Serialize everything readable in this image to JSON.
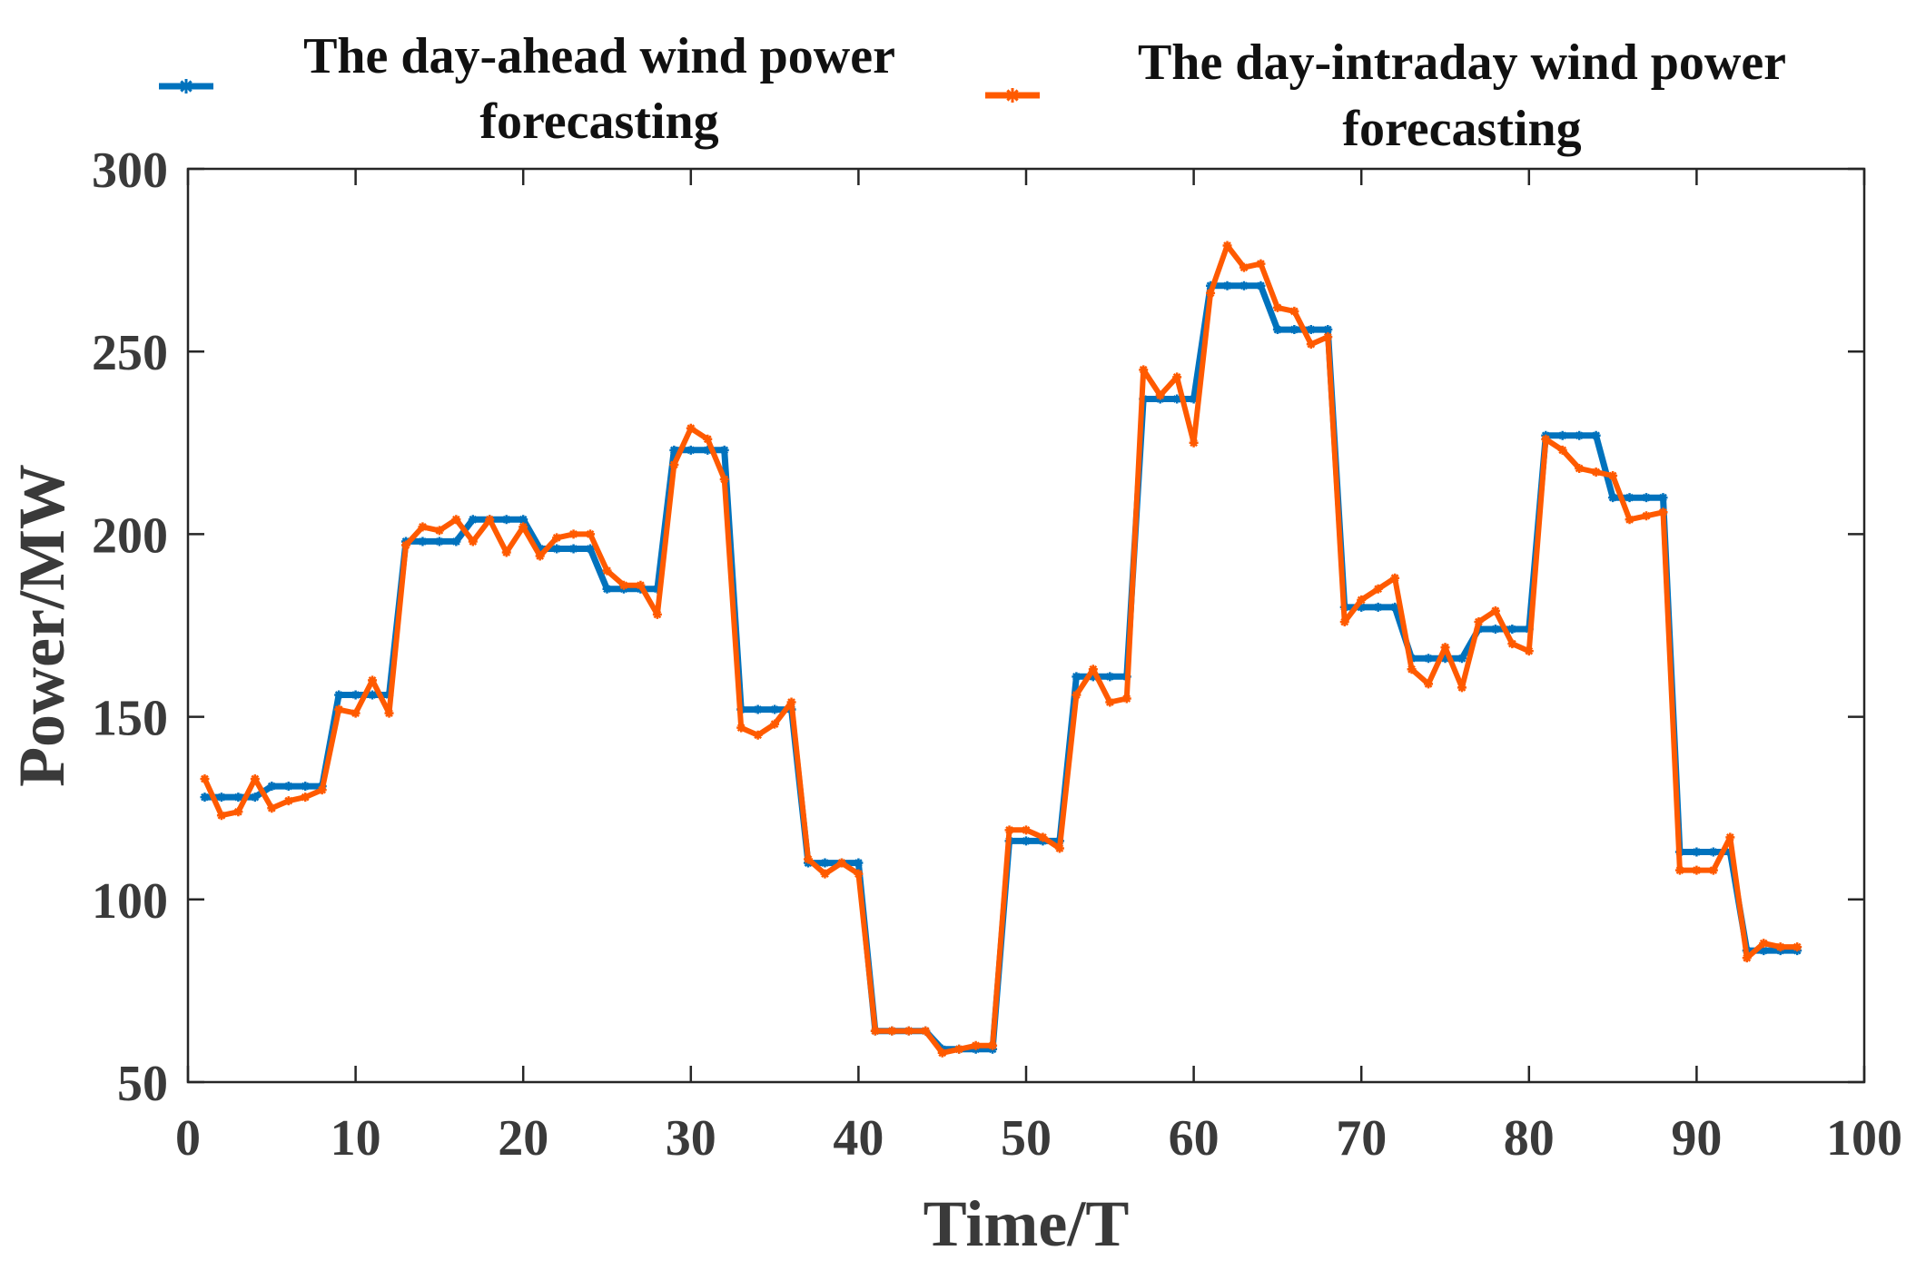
{
  "chart_data": {
    "type": "line",
    "title": "",
    "xlabel": "Time/T",
    "ylabel": "Power/MW",
    "xlim": [
      0,
      100
    ],
    "ylim": [
      50,
      300
    ],
    "xticks": [
      0,
      10,
      20,
      30,
      40,
      50,
      60,
      70,
      80,
      90,
      100
    ],
    "yticks": [
      50,
      100,
      150,
      200,
      250,
      300
    ],
    "xtick_labels": [
      "0",
      "10",
      "20",
      "30",
      "40",
      "50",
      "60",
      "70",
      "80",
      "90",
      "100"
    ],
    "ytick_labels": [
      "50",
      "100",
      "150",
      "200",
      "250",
      "300"
    ],
    "grid": false,
    "legend_position": "top",
    "x": [
      1,
      2,
      3,
      4,
      5,
      6,
      7,
      8,
      9,
      10,
      11,
      12,
      13,
      14,
      15,
      16,
      17,
      18,
      19,
      20,
      21,
      22,
      23,
      24,
      25,
      26,
      27,
      28,
      29,
      30,
      31,
      32,
      33,
      34,
      35,
      36,
      37,
      38,
      39,
      40,
      41,
      42,
      43,
      44,
      45,
      46,
      47,
      48,
      49,
      50,
      51,
      52,
      53,
      54,
      55,
      56,
      57,
      58,
      59,
      60,
      61,
      62,
      63,
      64,
      65,
      66,
      67,
      68,
      69,
      70,
      71,
      72,
      73,
      74,
      75,
      76,
      77,
      78,
      79,
      80,
      81,
      82,
      83,
      84,
      85,
      86,
      87,
      88,
      89,
      90,
      91,
      92,
      93,
      94,
      95,
      96
    ],
    "series": [
      {
        "name": "The day-ahead wind power forecasting",
        "legend_line1": "The day-ahead wind power",
        "legend_line2": "forecasting",
        "color": "#0072bd",
        "values": [
          128,
          128,
          128,
          128,
          131,
          131,
          131,
          131,
          156,
          156,
          156,
          156,
          198,
          198,
          198,
          198,
          204,
          204,
          204,
          204,
          196,
          196,
          196,
          196,
          185,
          185,
          185,
          185,
          223,
          223,
          223,
          223,
          152,
          152,
          152,
          152,
          110,
          110,
          110,
          110,
          64,
          64,
          64,
          64,
          59,
          59,
          59,
          59,
          116,
          116,
          116,
          116,
          161,
          161,
          161,
          161,
          237,
          237,
          237,
          237,
          268,
          268,
          268,
          268,
          256,
          256,
          256,
          256,
          180,
          180,
          180,
          180,
          166,
          166,
          166,
          166,
          174,
          174,
          174,
          174,
          227,
          227,
          227,
          227,
          210,
          210,
          210,
          210,
          113,
          113,
          113,
          113,
          86,
          86,
          86,
          86
        ]
      },
      {
        "name": "The day-intraday wind power forecasting",
        "legend_line1": "The day-intraday wind power",
        "legend_line2": "forecasting",
        "color": "#ff5a00",
        "values": [
          133,
          123,
          124,
          133,
          125,
          127,
          128,
          130,
          152,
          151,
          160,
          151,
          197,
          202,
          201,
          204,
          198,
          204,
          195,
          202,
          194,
          199,
          200,
          200,
          190,
          186,
          186,
          178,
          219,
          229,
          226,
          215,
          147,
          145,
          148,
          154,
          111,
          107,
          110,
          107,
          64,
          64,
          64,
          64,
          58,
          59,
          60,
          60,
          119,
          119,
          117,
          114,
          156,
          163,
          154,
          155,
          245,
          238,
          243,
          225,
          266,
          279,
          273,
          274,
          262,
          261,
          252,
          254,
          176,
          182,
          185,
          188,
          163,
          159,
          169,
          158,
          176,
          179,
          170,
          168,
          226,
          223,
          218,
          217,
          216,
          204,
          205,
          206,
          108,
          108,
          108,
          117,
          84,
          88,
          87,
          87
        ]
      }
    ]
  }
}
